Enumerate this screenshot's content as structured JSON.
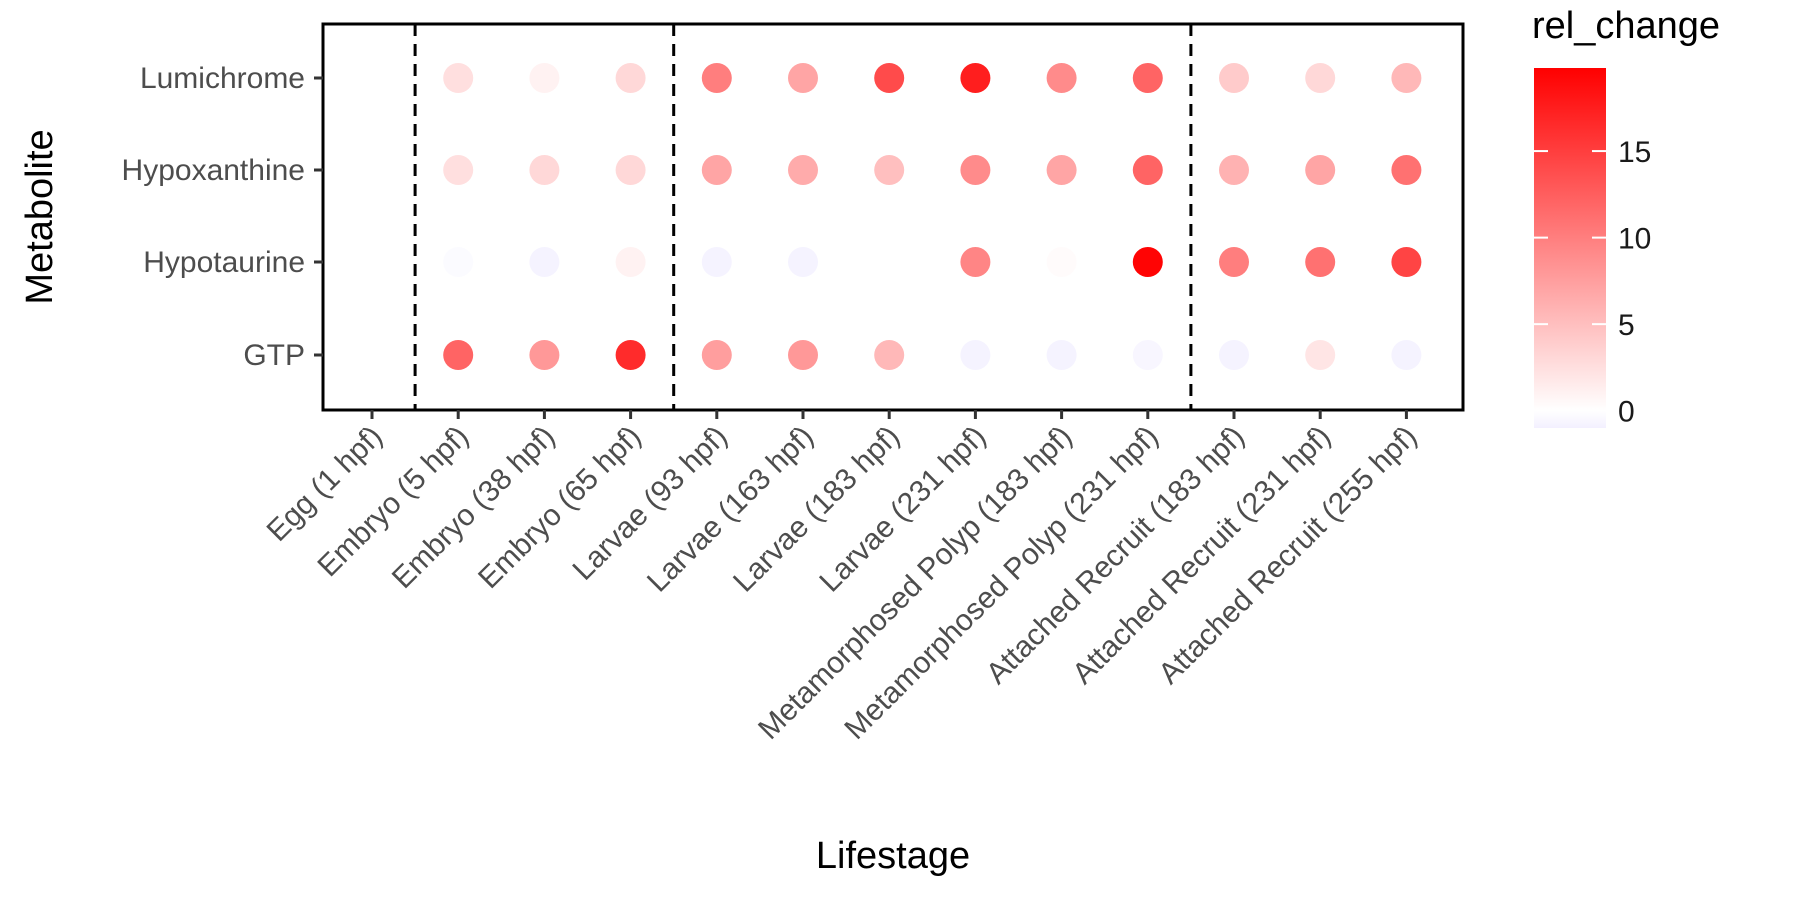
{
  "chart_data": {
    "type": "scatter",
    "xlabel": "Lifestage",
    "ylabel": "Metabolite",
    "categories": [
      "Egg (1 hpf)",
      "Embryo (5 hpf)",
      "Embryo (38 hpf)",
      "Embryo (65 hpf)",
      "Larvae (93 hpf)",
      "Larvae (163 hpf)",
      "Larvae (183 hpf)",
      "Larvae (231 hpf)",
      "Metamorphosed Polyp (183 hpf)",
      "Metamorphosed Polyp (231 hpf)",
      "Attached Recruit (183 hpf)",
      "Attached Recruit (231 hpf)",
      "Attached Recruit (255 hpf)"
    ],
    "metabolites": [
      "Lumichrome",
      "Hypoxanthine",
      "Hypotaurine",
      "GTP"
    ],
    "series": [
      {
        "name": "Lumichrome",
        "values": [
          null,
          2.5,
          1.0,
          3.0,
          10.0,
          7.0,
          14.0,
          17.5,
          9.0,
          12.0,
          4.0,
          3.0,
          5.5
        ]
      },
      {
        "name": "Hypoxanthine",
        "values": [
          null,
          2.5,
          3.0,
          3.0,
          7.0,
          6.5,
          5.0,
          9.0,
          7.0,
          12.0,
          6.0,
          7.0,
          11.0
        ]
      },
      {
        "name": "Hypotaurine",
        "values": [
          null,
          -0.3,
          -0.8,
          1.0,
          -0.8,
          -0.8,
          null,
          9.5,
          0.3,
          19.5,
          10.0,
          11.0,
          14.5
        ]
      },
      {
        "name": "GTP",
        "values": [
          null,
          12.0,
          8.0,
          16.5,
          7.5,
          8.0,
          5.5,
          -0.8,
          -0.8,
          -0.6,
          -0.8,
          2.0,
          -0.8
        ]
      }
    ],
    "dividers_after_category_index": [
      0,
      3,
      9
    ],
    "legend": {
      "title": "rel_change",
      "ticks": [
        0,
        5,
        10,
        15
      ],
      "range": [
        -1,
        19.8
      ],
      "low_color": "#f3f0ff",
      "mid_color": "#ffffff",
      "high_color": "#ff0000",
      "position": "right"
    },
    "grid": false
  }
}
